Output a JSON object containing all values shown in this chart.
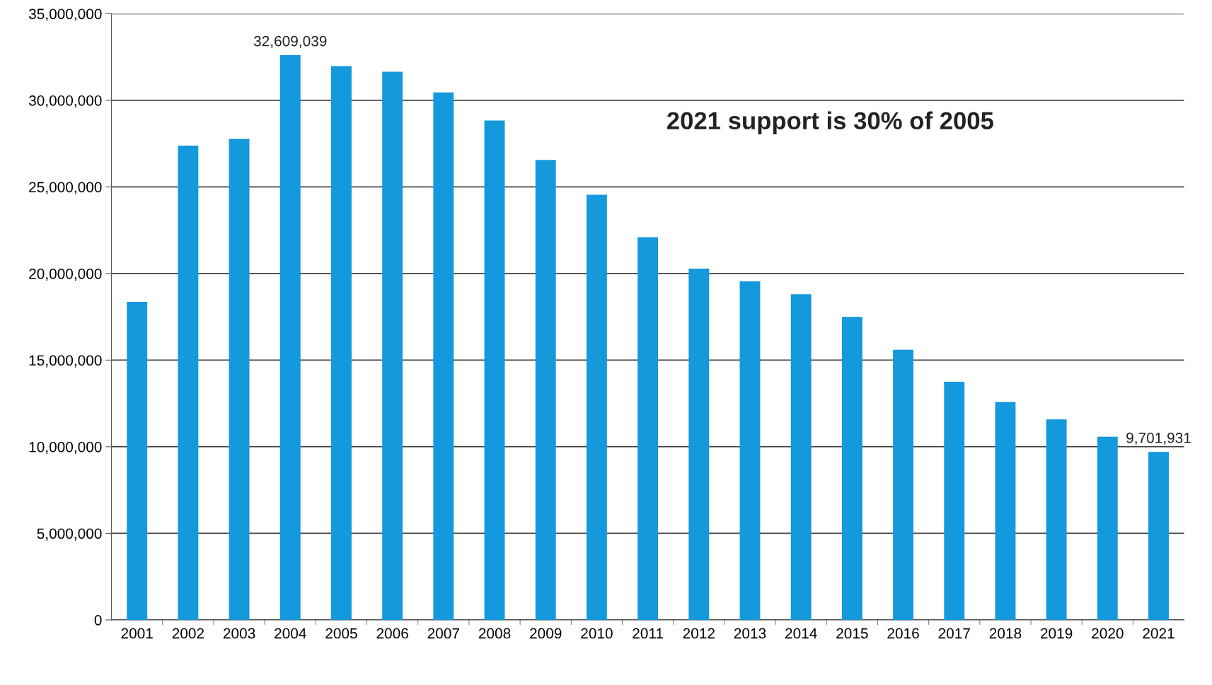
{
  "chart_data": {
    "type": "bar",
    "categories": [
      "2001",
      "2002",
      "2003",
      "2004",
      "2005",
      "2006",
      "2007",
      "2008",
      "2009",
      "2010",
      "2011",
      "2012",
      "2013",
      "2014",
      "2015",
      "2016",
      "2017",
      "2018",
      "2019",
      "2020",
      "2021"
    ],
    "values": [
      18360000,
      27380000,
      27770000,
      32609039,
      31970000,
      31650000,
      30450000,
      28830000,
      26560000,
      24550000,
      22100000,
      20280000,
      19550000,
      18800000,
      17500000,
      15600000,
      13750000,
      12580000,
      11580000,
      10580000,
      9701931
    ],
    "value_labels": [
      null,
      null,
      null,
      "32,609,039",
      null,
      null,
      null,
      null,
      null,
      null,
      null,
      null,
      null,
      null,
      null,
      null,
      null,
      null,
      null,
      null,
      "9,701,931"
    ],
    "color": "#1399dc",
    "ylim": [
      0,
      35000000
    ],
    "yticks": [
      {
        "value": 0,
        "label": "0"
      },
      {
        "value": 5000000,
        "label": "5,000,000"
      },
      {
        "value": 10000000,
        "label": "10,000,000"
      },
      {
        "value": 15000000,
        "label": "15,000,000"
      },
      {
        "value": 20000000,
        "label": "20,000,000"
      },
      {
        "value": 25000000,
        "label": "25,000,000"
      },
      {
        "value": 30000000,
        "label": "30,000,000"
      },
      {
        "value": 35000000,
        "label": "35,000,000"
      }
    ],
    "grid": "y",
    "annotations": [
      "2021 support is 30% of 2005"
    ]
  }
}
